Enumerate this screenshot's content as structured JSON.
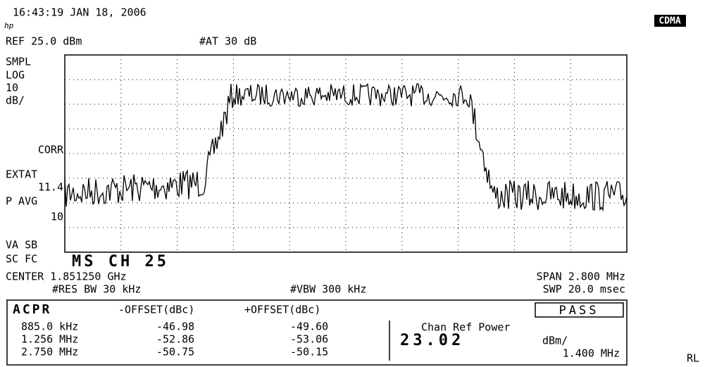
{
  "header": {
    "timestamp": "16:43:19 JAN 18, 2006",
    "logo": "hp",
    "ref_level": "REF 25.0 dBm",
    "attenuation": "#AT 30 dB",
    "mode": "CDMA"
  },
  "side_labels": [
    "SMPL",
    "LOG",
    "10",
    "dB/",
    "CORR",
    "EXTAT",
    "11.4",
    "P AVG",
    "10",
    "VA SB",
    "SC FC"
  ],
  "channel": "MS  CH  25",
  "settings": {
    "center": "CENTER 1.851250 GHz",
    "span": "SPAN 2.800 MHz",
    "rbw": "#RES BW 30 kHz",
    "vbw": "#VBW 300 kHz",
    "sweep": "SWP 20.0 msec"
  },
  "acpr": {
    "title": "ACPR",
    "neg_header": "-OFFSET(dBc)",
    "pos_header": "+OFFSET(dBc)",
    "status": "PASS",
    "rows": [
      [
        "885.0 kHz",
        "-46.98",
        "-49.60"
      ],
      [
        "1.256 MHz",
        "-52.86",
        "-53.06"
      ],
      [
        "2.750 MHz",
        "-50.75",
        "-50.15"
      ]
    ],
    "chan_ref_label": "Chan Ref Power",
    "chan_ref_value": "23.02",
    "chan_ref_unit": "dBm/",
    "chan_ref_bw": "1.400 MHz"
  },
  "footer": "RL"
}
